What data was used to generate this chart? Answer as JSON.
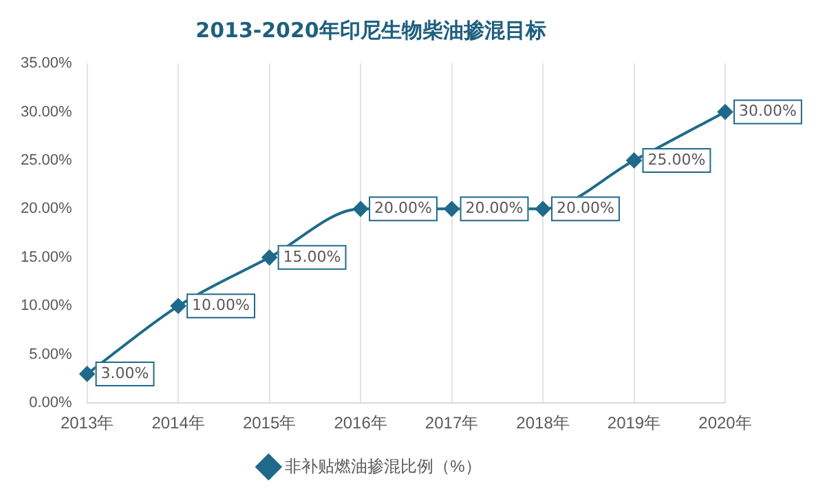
{
  "chart_data": {
    "type": "line",
    "title": "2013-2020年印尼生物柴油掺混目标",
    "categories": [
      "2013年",
      "2014年",
      "2015年",
      "2016年",
      "2017年",
      "2018年",
      "2019年",
      "2020年"
    ],
    "series": [
      {
        "name": "非补贴燃油掺混比例（%）",
        "color": "#1f6a8a",
        "values": [
          3,
          10,
          15,
          20,
          20,
          20,
          25,
          30
        ],
        "value_labels": [
          "3.00%",
          "10.00%",
          "15.00%",
          "20.00%",
          "20.00%",
          "20.00%",
          "25.00%",
          "30.00%"
        ]
      }
    ],
    "ylim": [
      0,
      35
    ],
    "yticks": [
      {
        "value": 0,
        "label": "0.00%"
      },
      {
        "value": 5,
        "label": "5.00%"
      },
      {
        "value": 10,
        "label": "10.00%"
      },
      {
        "value": 15,
        "label": "15.00%"
      },
      {
        "value": 20,
        "label": "20.00%"
      },
      {
        "value": 25,
        "label": "25.00%"
      },
      {
        "value": 30,
        "label": "30.00%"
      },
      {
        "value": 35,
        "label": "35.00%"
      }
    ],
    "grid": "x",
    "legend": "bottom",
    "marker": "diamond",
    "line_style": "solid"
  }
}
